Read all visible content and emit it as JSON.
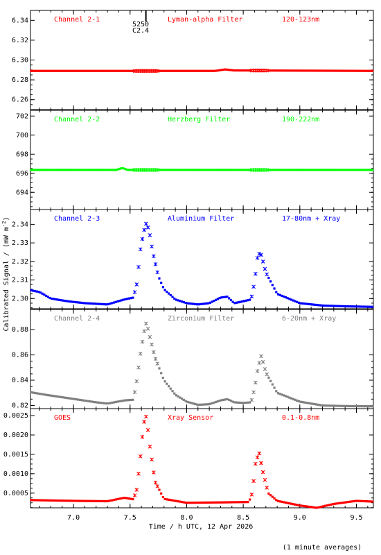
{
  "marker": {
    "line1": "5250",
    "line2": "C2.4",
    "x": 7.64
  },
  "common": {
    "xlabel": "Time / h UTC, 12 Apr 2026",
    "ylabel": "Calibrated Signal / (mW m",
    "ylabel_sup": "-2",
    "ylabel_close": ")",
    "footnote": "(1 minute averages)",
    "xlim": [
      6.62,
      9.65
    ],
    "xticks": [
      7.0,
      7.5,
      8.0,
      8.5,
      9.0,
      9.5
    ],
    "xtick_labels": [
      "7.0",
      "7.5",
      "8.0",
      "8.5",
      "9.0",
      "9.5"
    ]
  },
  "chart_data": [
    {
      "type": "scatter",
      "channel": "Channel 2-1",
      "filter": "Lyman-alpha Filter",
      "band": "120-123nm",
      "color": "#ff0000",
      "ylim": [
        6.25,
        6.35
      ],
      "yticks": [
        6.26,
        6.28,
        6.3,
        6.32,
        6.34
      ],
      "ytick_labels": [
        "6.26",
        "6.28",
        "6.30",
        "6.32",
        "6.34"
      ],
      "anchors": [
        [
          6.62,
          6.289
        ],
        [
          8.25,
          6.289
        ],
        [
          8.34,
          6.2905
        ],
        [
          8.42,
          6.2895
        ],
        [
          9.65,
          6.289
        ]
      ]
    },
    {
      "type": "scatter",
      "channel": "Channel 2-2",
      "filter": "Herzberg Filter",
      "band": "190-222nm",
      "color": "#00ff00",
      "ylim": [
        692.2,
        702.6
      ],
      "yticks": [
        694,
        696,
        698,
        700,
        702
      ],
      "ytick_labels": [
        "694",
        "696",
        "698",
        "700",
        "702"
      ],
      "anchors": [
        [
          6.62,
          696.35
        ],
        [
          7.38,
          696.35
        ],
        [
          7.43,
          696.55
        ],
        [
          7.48,
          696.35
        ],
        [
          9.65,
          696.35
        ]
      ]
    },
    {
      "type": "scatter",
      "channel": "Channel 2-3",
      "filter": "Aluminium Filter",
      "band": "17-80nm + Xray",
      "color": "#0000ff",
      "ylim": [
        2.2945,
        2.348
      ],
      "yticks": [
        2.3,
        2.31,
        2.32,
        2.33,
        2.34
      ],
      "ytick_labels": [
        "2.30",
        "2.31",
        "2.32",
        "2.33",
        "2.34"
      ],
      "anchors": [
        [
          6.62,
          2.3045
        ],
        [
          6.7,
          2.3035
        ],
        [
          6.8,
          2.3
        ],
        [
          6.95,
          2.2985
        ],
        [
          7.1,
          2.2975
        ],
        [
          7.3,
          2.2968
        ],
        [
          7.45,
          2.2995
        ],
        [
          7.53,
          2.3005
        ],
        [
          7.56,
          2.308
        ],
        [
          7.59,
          2.326
        ],
        [
          7.62,
          2.336
        ],
        [
          7.645,
          2.341
        ],
        [
          7.67,
          2.336
        ],
        [
          7.7,
          2.325
        ],
        [
          7.75,
          2.312
        ],
        [
          7.8,
          2.305
        ],
        [
          7.9,
          2.2995
        ],
        [
          8.0,
          2.2975
        ],
        [
          8.1,
          2.2968
        ],
        [
          8.2,
          2.2975
        ],
        [
          8.3,
          2.3005
        ],
        [
          8.36,
          2.301
        ],
        [
          8.42,
          2.2975
        ],
        [
          8.5,
          2.2985
        ],
        [
          8.57,
          2.2995
        ],
        [
          8.6,
          2.309
        ],
        [
          8.63,
          2.3245
        ],
        [
          8.66,
          2.3235
        ],
        [
          8.7,
          2.314
        ],
        [
          8.8,
          2.3025
        ],
        [
          9.0,
          2.2975
        ],
        [
          9.2,
          2.2962
        ],
        [
          9.4,
          2.2958
        ],
        [
          9.65,
          2.2955
        ]
      ]
    },
    {
      "type": "scatter",
      "channel": "Channel 2-4",
      "filter": "Zirconium Filter",
      "band": "6-20nm + Xray",
      "color": "#808080",
      "ylim": [
        0.8175,
        0.896
      ],
      "yticks": [
        0.82,
        0.84,
        0.86,
        0.88
      ],
      "ytick_labels": [
        "0.82",
        "0.84",
        "0.86",
        "0.88"
      ],
      "anchors": [
        [
          6.62,
          0.8305
        ],
        [
          6.75,
          0.8285
        ],
        [
          6.9,
          0.8265
        ],
        [
          7.05,
          0.8245
        ],
        [
          7.2,
          0.8225
        ],
        [
          7.3,
          0.8215
        ],
        [
          7.45,
          0.824
        ],
        [
          7.53,
          0.8245
        ],
        [
          7.56,
          0.84
        ],
        [
          7.59,
          0.86
        ],
        [
          7.62,
          0.877
        ],
        [
          7.645,
          0.886
        ],
        [
          7.67,
          0.876
        ],
        [
          7.72,
          0.858
        ],
        [
          7.8,
          0.84
        ],
        [
          7.9,
          0.8285
        ],
        [
          8.0,
          0.823
        ],
        [
          8.1,
          0.8205
        ],
        [
          8.2,
          0.821
        ],
        [
          8.3,
          0.824
        ],
        [
          8.36,
          0.825
        ],
        [
          8.42,
          0.8225
        ],
        [
          8.5,
          0.822
        ],
        [
          8.57,
          0.8225
        ],
        [
          8.6,
          0.8335
        ],
        [
          8.63,
          0.85
        ],
        [
          8.66,
          0.8595
        ],
        [
          8.7,
          0.846
        ],
        [
          8.8,
          0.83
        ],
        [
          9.0,
          0.823
        ],
        [
          9.2,
          0.82
        ],
        [
          9.4,
          0.8195
        ],
        [
          9.65,
          0.8193
        ]
      ]
    },
    {
      "type": "scatter",
      "channel": "GOES",
      "filter": "Xray Sensor",
      "band": "0.1-0.8nm",
      "color": "#ff0000",
      "ylim": [
        0.00012,
        0.00268
      ],
      "yticks": [
        0.0005,
        0.001,
        0.0015,
        0.002,
        0.0025
      ],
      "ytick_labels": [
        "0.0005",
        "0.0010",
        "0.0015",
        "0.0020",
        "0.0025"
      ],
      "anchors": [
        [
          6.62,
          0.00032
        ],
        [
          7.0,
          0.0003
        ],
        [
          7.3,
          0.00029
        ],
        [
          7.45,
          0.00038
        ],
        [
          7.53,
          0.00034
        ],
        [
          7.56,
          0.0006
        ],
        [
          7.59,
          0.0014
        ],
        [
          7.62,
          0.0023
        ],
        [
          7.645,
          0.0025
        ],
        [
          7.67,
          0.0018
        ],
        [
          7.72,
          0.0008
        ],
        [
          7.8,
          0.00035
        ],
        [
          8.0,
          0.00025
        ],
        [
          8.3,
          0.00026
        ],
        [
          8.55,
          0.00027
        ],
        [
          8.58,
          0.0005
        ],
        [
          8.61,
          0.0013
        ],
        [
          8.64,
          0.00155
        ],
        [
          8.67,
          0.0011
        ],
        [
          8.72,
          0.0005
        ],
        [
          8.8,
          0.0003
        ],
        [
          9.0,
          0.00018
        ],
        [
          9.15,
          0.00012
        ],
        [
          9.3,
          0.00022
        ],
        [
          9.5,
          0.0003
        ],
        [
          9.65,
          0.00028
        ]
      ]
    }
  ]
}
